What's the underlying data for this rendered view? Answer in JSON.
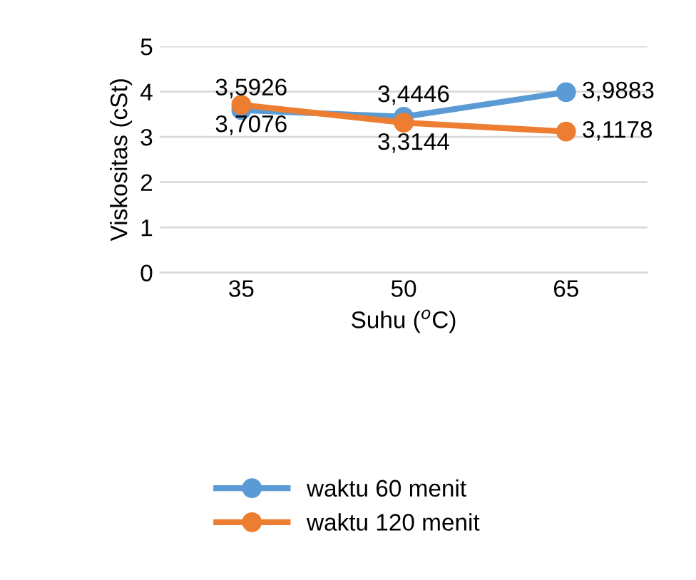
{
  "chart_data": {
    "type": "line",
    "xlabel": "Suhu ($^{o}$C)",
    "ylabel": "Viskositas (cSt)",
    "categories": [
      "35",
      "50",
      "65"
    ],
    "series": [
      {
        "name": "waktu 60 menit",
        "color": "#5b9bd5",
        "values": [
          3.5926,
          3.4446,
          3.9883
        ],
        "value_labels": [
          "3,5926",
          "3,4446",
          "3,9883"
        ]
      },
      {
        "name": "waktu 120 menit",
        "color": "#ed7d31",
        "values": [
          3.7076,
          3.3144,
          3.1178
        ],
        "value_labels": [
          "3,7076",
          "3,3144",
          "3,1178"
        ]
      }
    ],
    "ylim": [
      0,
      5
    ],
    "yticks": [
      0,
      1,
      2,
      3,
      4,
      5
    ],
    "grid": "y",
    "legend": "bottom",
    "marker": "circle",
    "line_style": "solid"
  }
}
